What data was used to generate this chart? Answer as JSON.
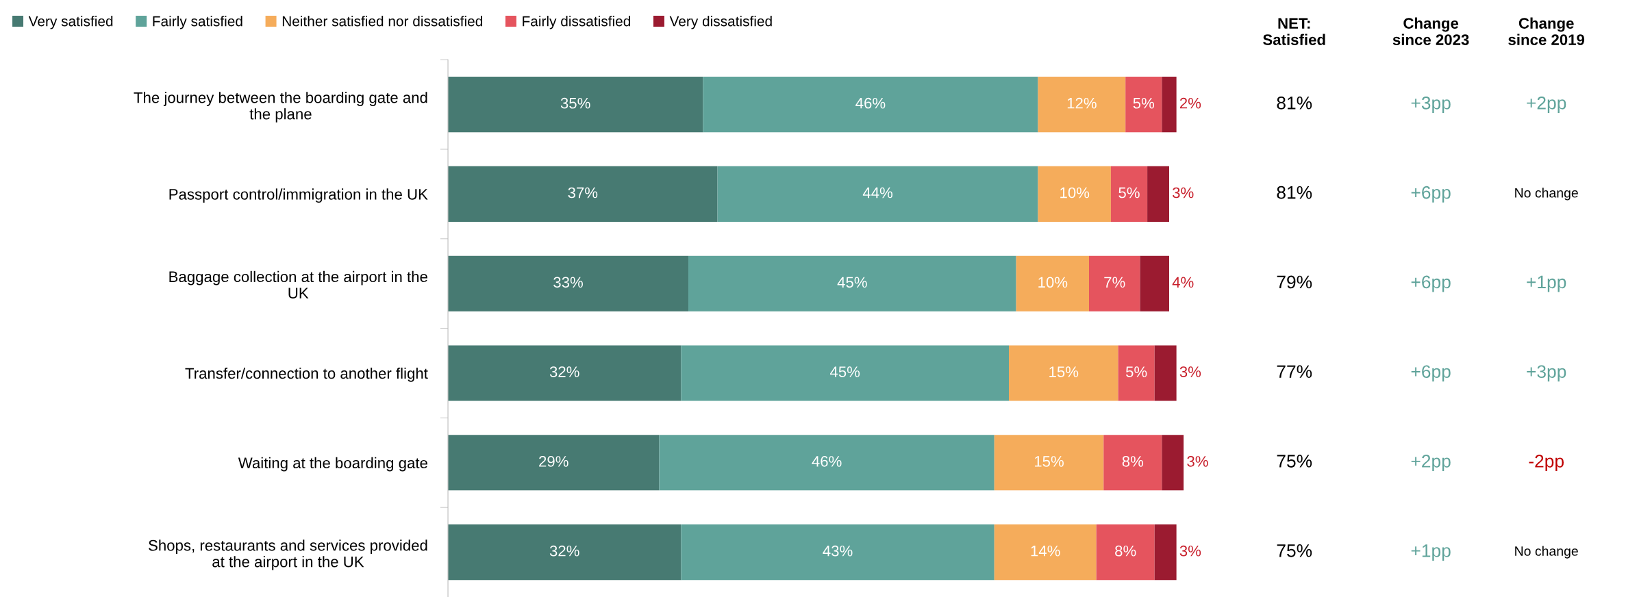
{
  "chart_data": {
    "type": "bar",
    "orientation": "horizontal",
    "stacked": true,
    "legend": "top",
    "grid": false,
    "tick_labels": "y",
    "categories": [
      "The journey between the boarding gate and the plane",
      "Passport control/immigration in the UK",
      "Baggage collection at the airport in the UK",
      "Transfer/connection to another flight",
      "Waiting at the boarding gate",
      "Shops, restaurants and services provided at the airport in the UK"
    ],
    "series": [
      {
        "name": "Very satisfied",
        "color": "#477a72",
        "values": [
          35,
          37,
          33,
          32,
          29,
          32
        ],
        "value_labels": [
          "35%",
          "37%",
          "33%",
          "32%",
          "29%",
          "32%"
        ]
      },
      {
        "name": "Fairly satisfied",
        "color": "#5fa39a",
        "values": [
          46,
          44,
          45,
          45,
          46,
          43
        ],
        "value_labels": [
          "46%",
          "44%",
          "45%",
          "45%",
          "46%",
          "43%"
        ]
      },
      {
        "name": "Neither satisfied nor dissatisfied",
        "color": "#f5ac5b",
        "values": [
          12,
          10,
          10,
          15,
          15,
          14
        ],
        "value_labels": [
          "12%",
          "10%",
          "10%",
          "15%",
          "15%",
          "14%"
        ]
      },
      {
        "name": "Fairly dissatisfied",
        "color": "#e5545e",
        "values": [
          5,
          5,
          7,
          5,
          8,
          8
        ],
        "value_labels": [
          "5%",
          "5%",
          "7%",
          "5%",
          "8%",
          "8%"
        ]
      },
      {
        "name": "Very dissatisfied",
        "color": "#9b1b30",
        "values": [
          2,
          3,
          4,
          3,
          3,
          3
        ],
        "value_labels": [
          "2%",
          "3%",
          "4%",
          "3%",
          "3%",
          "3%"
        ]
      }
    ],
    "annotations": [
      "NET:\nSatisfied",
      "Change\nsince 2023",
      "Change\nsince 2019",
      "81%",
      "+3pp",
      "+2pp",
      "81%",
      "+6pp",
      "No change",
      "79%",
      "+6pp",
      "+1pp",
      "77%",
      "+6pp",
      "+3pp",
      "75%",
      "+2pp",
      "-2pp",
      "75%",
      "+1pp",
      "No change"
    ]
  }
}
